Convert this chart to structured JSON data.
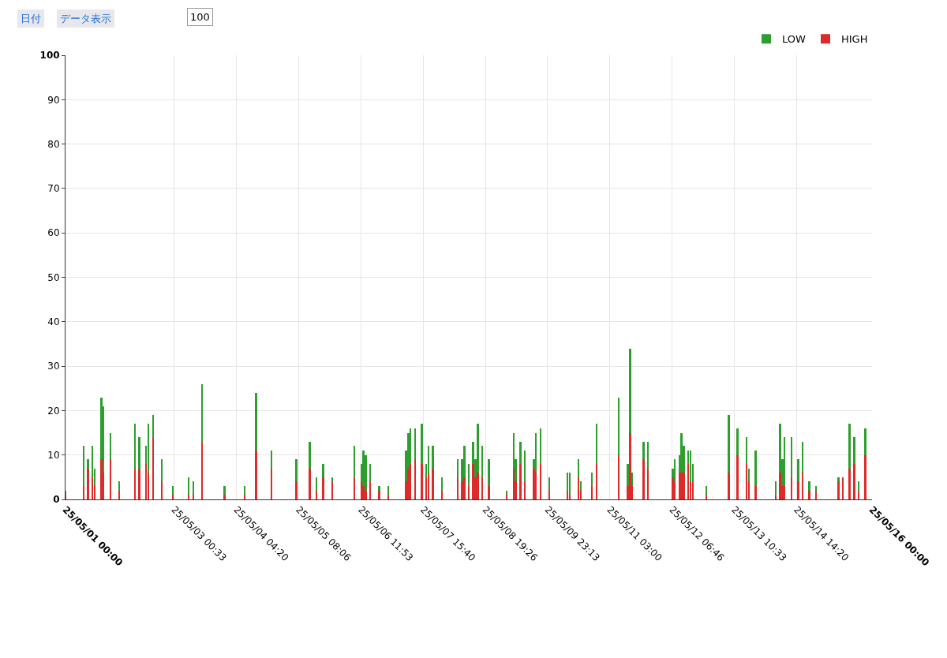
{
  "chart_data": {
    "type": "bar",
    "stacked": true,
    "x": [
      "--05-01T00:00",
      "--05-01T08:00",
      "--05-01T10:00",
      "--05-01T12:00",
      "--05-01T13:00",
      "--05-01T16:00",
      "--05-01T17:00",
      "--05-01T20:00",
      "--05-02T00:00",
      "--05-02T07:00",
      "--05-02T09:00",
      "--05-02T12:00",
      "--05-02T13:00",
      "--05-02T15:00",
      "--05-02T19:00",
      "--05-03T00:00",
      "--05-03T07:00",
      "--05-03T09:00",
      "--05-03T13:00",
      "--05-03T23:00",
      "--05-04T08:00",
      "--05-04T13:00",
      "--05-04T20:00",
      "--05-05T07:00",
      "--05-05T13:00",
      "--05-05T16:00",
      "--05-05T19:00",
      "--05-05T23:00",
      "--05-06T09:00",
      "--05-06T12:00",
      "--05-06T13:00",
      "--05-06T14:00",
      "--05-06T16:00",
      "--05-06T20:00",
      "--05-07T00:00",
      "--05-07T08:00",
      "--05-07T09:00",
      "--05-07T10:00",
      "--05-07T12:00",
      "--05-07T15:00",
      "--05-07T17:00",
      "--05-07T18:00",
      "--05-07T20:00",
      "--05-08T00:00",
      "--05-08T07:00",
      "--05-08T09:00",
      "--05-08T10:00",
      "--05-08T12:00",
      "--05-08T14:00",
      "--05-08T15:00",
      "--05-08T16:00",
      "--05-08T18:00",
      "--05-08T21:00",
      "--05-09T05:00",
      "--05-09T08:00",
      "--05-09T09:00",
      "--05-09T11:00",
      "--05-09T13:00",
      "--05-09T17:00",
      "--05-09T18:00",
      "--05-09T20:00",
      "--05-10T00:00",
      "--05-10T08:00",
      "--05-10T09:00",
      "--05-10T13:00",
      "--05-10T14:00",
      "--05-10T19:00",
      "--05-10T21:00",
      "--05-11T07:00",
      "--05-11T11:00",
      "--05-11T12:00",
      "--05-11T13:00",
      "--05-11T18:00",
      "--05-11T20:00",
      "--05-12T07:00",
      "--05-12T08:00",
      "--05-12T10:00",
      "--05-12T11:00",
      "--05-12T12:00",
      "--05-12T14:00",
      "--05-12T15:00",
      "--05-12T16:00",
      "--05-12T22:00",
      "--05-13T08:00",
      "--05-13T12:00",
      "--05-13T16:00",
      "--05-13T17:00",
      "--05-13T20:00",
      "--05-14T05:00",
      "--05-14T07:00",
      "--05-14T08:00",
      "--05-14T09:00",
      "--05-14T12:00",
      "--05-14T15:00",
      "--05-14T17:00",
      "--05-14T20:00",
      "--05-14T23:00",
      "--05-15T09:00",
      "--05-15T11:00",
      "--05-15T14:00",
      "--05-15T16:00",
      "--05-15T18:00",
      "--05-15T21:00"
    ],
    "series": [
      {
        "name": "HIGH",
        "color": "#dd2a2a",
        "values": [
          1,
          3,
          7,
          5,
          3,
          9,
          6,
          9,
          2,
          7,
          7,
          8,
          6,
          14,
          4,
          1,
          1,
          1,
          13,
          1,
          1,
          11,
          7,
          4,
          7,
          2,
          5,
          4,
          5,
          4,
          3,
          2,
          4,
          2,
          1,
          4,
          7,
          8,
          9,
          8,
          5,
          6,
          7,
          2,
          5,
          4,
          5,
          3,
          8,
          5,
          6,
          5,
          3,
          1,
          7,
          4,
          8,
          4,
          7,
          6,
          8,
          2,
          2,
          1,
          5,
          2,
          3,
          8,
          10,
          3,
          15,
          3,
          9,
          7,
          5,
          4,
          6,
          6,
          6,
          8,
          4,
          4,
          1,
          6,
          10,
          8,
          4,
          3,
          1,
          6,
          3,
          3,
          5,
          4,
          6,
          2,
          2,
          4,
          5,
          7,
          8,
          2,
          10
        ]
      },
      {
        "name": "LOW",
        "color": "#2e9e2e",
        "values": [
          1,
          9,
          2,
          7,
          4,
          14,
          15,
          6,
          2,
          10,
          7,
          4,
          11,
          5,
          5,
          2,
          4,
          3,
          13,
          2,
          2,
          13,
          4,
          5,
          6,
          3,
          3,
          1,
          7,
          4,
          8,
          8,
          4,
          1,
          2,
          7,
          8,
          8,
          7,
          9,
          3,
          6,
          5,
          3,
          4,
          5,
          7,
          5,
          5,
          4,
          11,
          7,
          6,
          1,
          8,
          5,
          5,
          7,
          2,
          9,
          8,
          3,
          4,
          5,
          4,
          2,
          3,
          9,
          13,
          5,
          19,
          3,
          4,
          6,
          2,
          5,
          4,
          9,
          6,
          3,
          7,
          4,
          2,
          13,
          6,
          6,
          3,
          8,
          3,
          11,
          6,
          11,
          9,
          5,
          7,
          2,
          1,
          1,
          0,
          10,
          6,
          2,
          6
        ]
      }
    ],
    "xlim": [
      "--05-01T00:00",
      "--05-16T00:00"
    ],
    "xticks": [
      {
        "value": "--05-01T00:00",
        "label": "25/05/01 00:00"
      },
      {
        "value": "--05-03T00:33",
        "label": "25/05/03 00:33"
      },
      {
        "value": "--05-04T04:20",
        "label": "25/05/04 04:20"
      },
      {
        "value": "--05-05T08:06",
        "label": "25/05/05 08:06"
      },
      {
        "value": "--05-06T11:53",
        "label": "25/05/06 11:53"
      },
      {
        "value": "--05-07T15:40",
        "label": "25/05/07 15:40"
      },
      {
        "value": "--05-08T19:26",
        "label": "25/05/08 19:26"
      },
      {
        "value": "--05-09T23:13",
        "label": "25/05/09 23:13"
      },
      {
        "value": "--05-11T03:00",
        "label": "25/05/11 03:00"
      },
      {
        "value": "--05-12T06:46",
        "label": "25/05/12 06:46"
      },
      {
        "value": "--05-13T10:33",
        "label": "25/05/13 10:33"
      },
      {
        "value": "--05-14T14:20",
        "label": "25/05/14 14:20"
      },
      {
        "value": "--05-16T00:00",
        "label": "25/05/16 00:00"
      }
    ],
    "ylim": [
      0,
      100
    ],
    "yticks": [
      0,
      10,
      20,
      30,
      40,
      50,
      60,
      70,
      80,
      90,
      100
    ],
    "grid": true,
    "legend": "top right",
    "annotations": [
      "日付",
      "データ表示",
      "100"
    ]
  }
}
